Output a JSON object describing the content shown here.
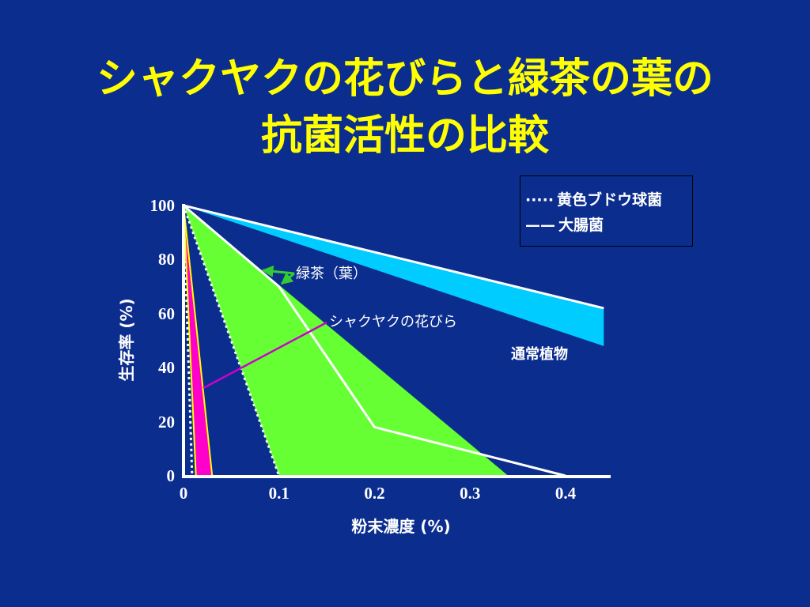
{
  "slide": {
    "background": "#0b2d8e",
    "title_color": "#ffff00",
    "text_color": "#ffffff"
  },
  "chart_data": {
    "type": "area",
    "title_lines": [
      "シャクヤクの花びらと緑茶の葉の",
      "抗菌活性の比較"
    ],
    "xlabel": "粉末濃度 (%)",
    "ylabel": "生存率 (%)",
    "xlim": [
      0,
      0.45
    ],
    "ylim": [
      0,
      100
    ],
    "x_ticks": [
      "0",
      "0.1",
      "0.2",
      "0.3",
      "0.4"
    ],
    "y_ticks": [
      "0",
      "20",
      "40",
      "60",
      "80",
      "100"
    ],
    "grid": false,
    "legend": {
      "position": "top-right",
      "entries": [
        {
          "marker": "·····",
          "label": "黄色ブドウ球菌",
          "line_style": "dotted"
        },
        {
          "marker": "——",
          "label": "大腸菌",
          "line_style": "solid"
        }
      ]
    },
    "bands": [
      {
        "name": "通常植物",
        "color": "#00ccff",
        "pointer_color": "#ffffff",
        "upper": [
          [
            0,
            100
          ],
          [
            0.44,
            62
          ]
        ],
        "lower": [
          [
            0,
            100
          ],
          [
            0.44,
            48
          ]
        ]
      },
      {
        "name": "緑茶（葉）",
        "color": "#66ff33",
        "pointer_color": "#33cc33",
        "upper": [
          [
            0,
            100
          ],
          [
            0.34,
            0
          ]
        ],
        "lower": [
          [
            0,
            100
          ],
          [
            0.1,
            0
          ]
        ]
      },
      {
        "name": "シャクヤクの花びら",
        "color": "#ff00cc",
        "pointer_color": "#cc00cc",
        "upper": [
          [
            0,
            100
          ],
          [
            0.03,
            0
          ]
        ],
        "lower": [
          [
            0,
            100
          ],
          [
            0.013,
            0
          ]
        ]
      }
    ],
    "lines": [
      {
        "legend_entry": 1,
        "style": "solid",
        "color": "#ffffff",
        "points": [
          [
            0,
            100
          ],
          [
            0.44,
            62
          ]
        ]
      },
      {
        "legend_entry": 1,
        "style": "solid",
        "color": "#ffffff",
        "points": [
          [
            0,
            100
          ],
          [
            0.1,
            70
          ],
          [
            0.2,
            18
          ],
          [
            0.4,
            0
          ]
        ]
      },
      {
        "legend_entry": 0,
        "style": "dotted",
        "color": "#ffffff",
        "points": [
          [
            0,
            100
          ],
          [
            0.1,
            0
          ]
        ]
      },
      {
        "legend_entry": 0,
        "style": "dotted",
        "color": "#ffffff",
        "points": [
          [
            0,
            100
          ],
          [
            0.009,
            0
          ]
        ]
      },
      {
        "style": "solid",
        "color": "#ffff00",
        "points": [
          [
            0,
            100
          ],
          [
            0.013,
            0
          ]
        ]
      },
      {
        "style": "solid",
        "color": "#ffff00",
        "points": [
          [
            0,
            100
          ],
          [
            0.03,
            0
          ]
        ]
      }
    ]
  }
}
